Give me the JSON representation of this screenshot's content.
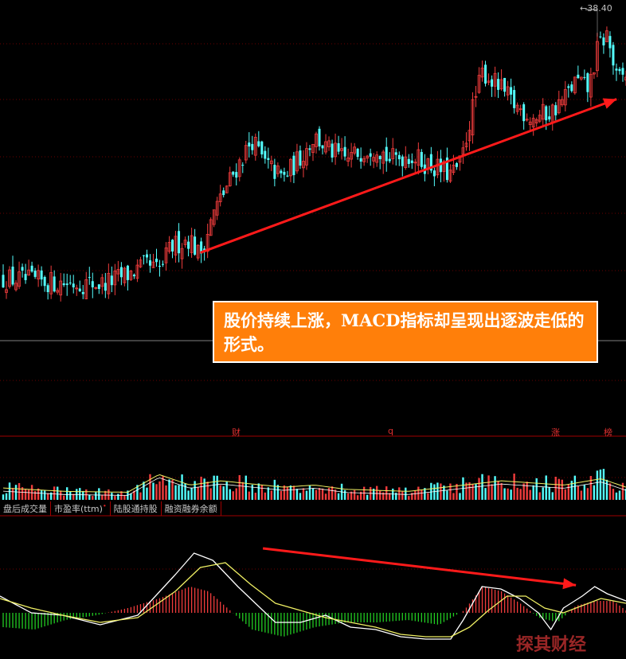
{
  "price_label": "←38.40",
  "callout": {
    "text": "股价持续上涨，MACD指标却呈现出逐波走低的形式。"
  },
  "event_markers": [
    {
      "label": "财",
      "pos": 0.37
    },
    {
      "label": "q",
      "pos": 0.62
    },
    {
      "label": "涨",
      "pos": 0.88
    },
    {
      "label": "榜",
      "pos": 0.965
    }
  ],
  "indicator_tabs": [
    {
      "label": "盘后成交量",
      "badge": ""
    },
    {
      "label": "市盈率(ttm)",
      "badge": "•"
    },
    {
      "label": "陆股通持股",
      "badge": ""
    },
    {
      "label": "融资融券余额",
      "badge": ""
    }
  ],
  "watermark": "探其财经",
  "colors": {
    "up": "#f03c3c",
    "down": "#54ffff",
    "grid": "#6a0000",
    "dif": "#ffffff",
    "dea": "#f0f064",
    "ma": "#f0f064",
    "arrow": "#ff1a1a",
    "macd_up": "#f03c3c",
    "macd_down": "#22cc22"
  },
  "chart_data": [
    {
      "type": "candlestick",
      "panel": "price",
      "title": "",
      "ylim": [
        22.0,
        39.0
      ],
      "x": [
        0,
        0.07,
        0.16,
        0.2,
        0.23,
        0.25,
        0.27,
        0.3,
        0.315,
        0.34,
        0.37,
        0.4,
        0.42,
        0.45,
        0.48,
        0.5,
        0.52,
        0.55,
        0.58,
        0.6,
        0.62,
        0.65,
        0.68,
        0.7,
        0.72,
        0.735,
        0.75,
        0.77,
        0.8,
        0.82,
        0.85,
        0.88,
        0.9,
        0.92,
        0.94,
        0.955,
        0.97,
        0.985,
        1.0
      ],
      "close": [
        24.8,
        24.6,
        24.5,
        25.0,
        25.5,
        25.2,
        26.5,
        27.0,
        26.0,
        28.5,
        30.5,
        32.3,
        31.0,
        30.2,
        31.5,
        32.5,
        31.8,
        31.2,
        31.8,
        32.0,
        31.2,
        31.5,
        31.0,
        30.7,
        30.4,
        31.0,
        33.5,
        36.0,
        35.0,
        34.2,
        33.5,
        33.8,
        34.5,
        35.5,
        35.0,
        37.3,
        38.0,
        35.5,
        35.8
      ],
      "trend_arrow": {
        "from": [
          0.32,
          26.2
        ],
        "to": [
          0.985,
          34.5
        ]
      },
      "marked_high": 38.4
    },
    {
      "type": "bar",
      "panel": "volume",
      "title": "",
      "ylim": [
        0,
        1
      ],
      "x": [
        0,
        0.1,
        0.2,
        0.25,
        0.3,
        0.35,
        0.45,
        0.5,
        0.55,
        0.65,
        0.74,
        0.8,
        0.9,
        0.96,
        1.0
      ],
      "values": [
        0.28,
        0.2,
        0.18,
        0.6,
        0.35,
        0.45,
        0.3,
        0.35,
        0.25,
        0.2,
        0.35,
        0.45,
        0.35,
        0.5,
        0.3
      ]
    },
    {
      "type": "line",
      "panel": "macd",
      "title": "",
      "ylim": [
        -1.0,
        1.5
      ],
      "series": [
        {
          "x": [
            0,
            0.05,
            0.1,
            0.16,
            0.22,
            0.28,
            0.31,
            0.34,
            0.38,
            0.4,
            0.44,
            0.48,
            0.52,
            0.56,
            0.6,
            0.64,
            0.68,
            0.72,
            0.74,
            0.77,
            0.8,
            0.83,
            0.86,
            0.88,
            0.9,
            0.93,
            0.95,
            0.97,
            1.0
          ],
          "values": [
            0.35,
            0.0,
            -0.05,
            -0.25,
            -0.05,
            0.8,
            1.25,
            1.1,
            0.55,
            0.3,
            -0.2,
            -0.2,
            -0.05,
            -0.3,
            -0.35,
            -0.5,
            -0.55,
            -0.55,
            -0.15,
            0.55,
            0.5,
            0.3,
            0.0,
            -0.35,
            0.1,
            0.35,
            0.55,
            0.4,
            0.25
          ]
        },
        {
          "x": [
            0,
            0.05,
            0.1,
            0.16,
            0.22,
            0.28,
            0.32,
            0.36,
            0.4,
            0.44,
            0.48,
            0.52,
            0.56,
            0.6,
            0.64,
            0.68,
            0.72,
            0.75,
            0.78,
            0.81,
            0.84,
            0.87,
            0.9,
            0.93,
            0.96,
            1.0
          ],
          "values": [
            0.3,
            0.1,
            -0.05,
            -0.2,
            -0.1,
            0.45,
            0.95,
            1.05,
            0.6,
            0.2,
            0.05,
            -0.1,
            -0.2,
            -0.3,
            -0.45,
            -0.5,
            -0.5,
            -0.3,
            0.05,
            0.35,
            0.35,
            0.1,
            0.0,
            0.15,
            0.3,
            0.2
          ]
        }
      ],
      "histogram": {
        "x": [
          0,
          0.05,
          0.1,
          0.15,
          0.2,
          0.25,
          0.3,
          0.33,
          0.36,
          0.4,
          0.45,
          0.5,
          0.55,
          0.6,
          0.65,
          0.7,
          0.74,
          0.77,
          0.8,
          0.83,
          0.86,
          0.89,
          0.92,
          0.95,
          0.98,
          1.0
        ],
        "values": [
          -0.3,
          -0.35,
          -0.15,
          -0.05,
          0.1,
          0.3,
          0.55,
          0.45,
          0.1,
          -0.35,
          -0.5,
          -0.3,
          -0.2,
          -0.2,
          -0.15,
          -0.25,
          0.05,
          0.55,
          0.45,
          0.2,
          -0.1,
          -0.2,
          0.15,
          0.25,
          0.25,
          0.05
        ]
      },
      "trend_arrow": {
        "from": [
          0.42,
          1.35
        ],
        "to": [
          0.92,
          0.58
        ]
      }
    }
  ]
}
